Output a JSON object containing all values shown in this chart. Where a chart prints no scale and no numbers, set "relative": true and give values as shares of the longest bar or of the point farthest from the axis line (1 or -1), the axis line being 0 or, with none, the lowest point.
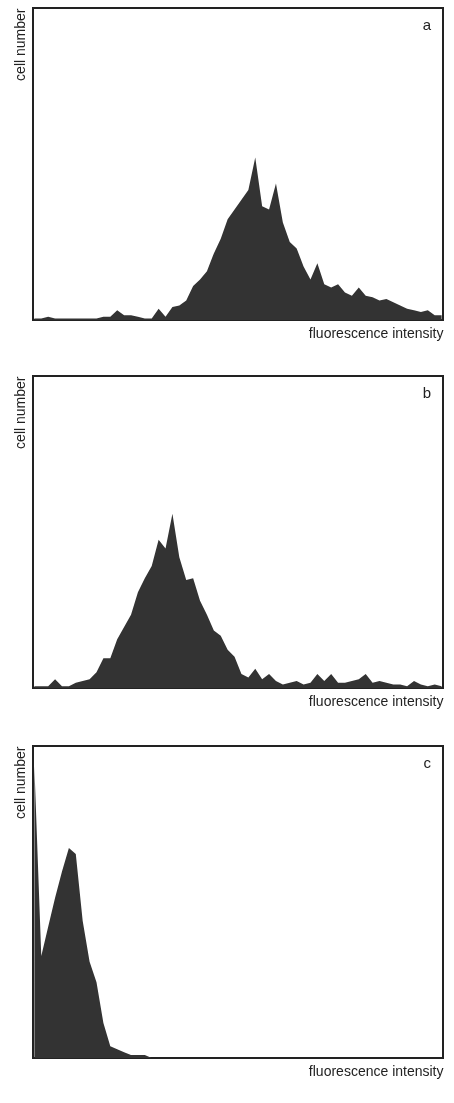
{
  "chart_data": [
    {
      "type": "area",
      "relative": true,
      "color": "#333333",
      "xlabel": "fluorescence intensity",
      "ylabel": "cell number",
      "annotations": [
        "a"
      ],
      "categories": [
        null,
        null,
        null,
        null,
        null,
        null,
        null,
        null,
        null,
        null,
        null,
        null,
        null,
        null,
        null,
        null,
        null,
        null,
        null,
        null,
        null,
        null,
        null,
        null,
        null,
        null,
        null,
        null,
        null,
        null,
        null,
        null,
        null,
        null,
        null,
        null,
        null,
        null,
        null,
        null,
        null,
        null,
        null,
        null,
        null,
        null,
        null,
        null,
        null,
        null,
        null,
        null,
        null,
        null,
        null,
        null,
        null,
        null,
        null,
        null
      ],
      "values": [
        0.01,
        0.01,
        0.02,
        0.01,
        0.01,
        0.01,
        0.01,
        0.01,
        0.01,
        0.01,
        0.02,
        0.02,
        0.06,
        0.03,
        0.03,
        0.02,
        0.01,
        0.01,
        0.07,
        0.02,
        0.08,
        0.09,
        0.12,
        0.21,
        0.25,
        0.3,
        0.41,
        0.5,
        0.62,
        0.68,
        0.74,
        0.8,
        1.0,
        0.7,
        0.68,
        0.84,
        0.6,
        0.48,
        0.44,
        0.33,
        0.25,
        0.35,
        0.22,
        0.2,
        0.22,
        0.17,
        0.15,
        0.2,
        0.15,
        0.14,
        0.12,
        0.13,
        0.11,
        0.09,
        0.07,
        0.06,
        0.05,
        0.06,
        0.03,
        0.03
      ]
    },
    {
      "type": "area",
      "relative": true,
      "color": "#333333",
      "xlabel": "fluorescence intensity",
      "ylabel": "cell number",
      "annotations": [
        "b"
      ],
      "categories": [
        null,
        null,
        null,
        null,
        null,
        null,
        null,
        null,
        null,
        null,
        null,
        null,
        null,
        null,
        null,
        null,
        null,
        null,
        null,
        null,
        null,
        null,
        null,
        null,
        null,
        null,
        null,
        null,
        null,
        null,
        null,
        null,
        null,
        null,
        null,
        null,
        null,
        null,
        null,
        null,
        null,
        null,
        null,
        null,
        null,
        null,
        null,
        null,
        null,
        null,
        null,
        null,
        null,
        null,
        null,
        null,
        null,
        null,
        null,
        null
      ],
      "values": [
        0.01,
        0.01,
        0.01,
        0.05,
        0.01,
        0.01,
        0.03,
        0.04,
        0.05,
        0.09,
        0.17,
        0.17,
        0.28,
        0.35,
        0.42,
        0.55,
        0.63,
        0.7,
        0.85,
        0.8,
        1.0,
        0.75,
        0.62,
        0.63,
        0.5,
        0.42,
        0.33,
        0.3,
        0.22,
        0.18,
        0.08,
        0.06,
        0.11,
        0.05,
        0.08,
        0.04,
        0.02,
        0.03,
        0.04,
        0.02,
        0.03,
        0.08,
        0.04,
        0.08,
        0.03,
        0.03,
        0.04,
        0.05,
        0.08,
        0.03,
        0.04,
        0.03,
        0.02,
        0.02,
        0.01,
        0.04,
        0.02,
        0.01,
        0.02,
        0.01
      ]
    },
    {
      "type": "area",
      "relative": true,
      "color": "#333333",
      "xlabel": "fluorescence intensity",
      "ylabel": "cell number",
      "annotations": [
        "c"
      ],
      "categories": [
        null,
        null,
        null,
        null,
        null,
        null,
        null,
        null,
        null,
        null,
        null,
        null,
        null,
        null,
        null,
        null,
        null,
        null,
        null,
        null,
        null,
        null,
        null,
        null,
        null,
        null,
        null,
        null,
        null,
        null,
        null,
        null,
        null,
        null,
        null,
        null,
        null,
        null,
        null,
        null,
        null,
        null,
        null,
        null,
        null,
        null,
        null,
        null,
        null,
        null,
        null,
        null,
        null,
        null,
        null,
        null,
        null,
        null,
        null,
        null
      ],
      "values": [
        1.0,
        0.35,
        0.45,
        0.55,
        0.64,
        0.72,
        0.7,
        0.47,
        0.33,
        0.26,
        0.12,
        0.04,
        0.03,
        0.02,
        0.01,
        0.01,
        0.01,
        0,
        0,
        0,
        0,
        0,
        0,
        0,
        0,
        0,
        0,
        0,
        0,
        0,
        0,
        0,
        0,
        0,
        0,
        0,
        0,
        0,
        0,
        0,
        0,
        0,
        0,
        0,
        0,
        0,
        0,
        0,
        0,
        0,
        0,
        0,
        0,
        0,
        0,
        0,
        0,
        0,
        0,
        0
      ]
    }
  ]
}
